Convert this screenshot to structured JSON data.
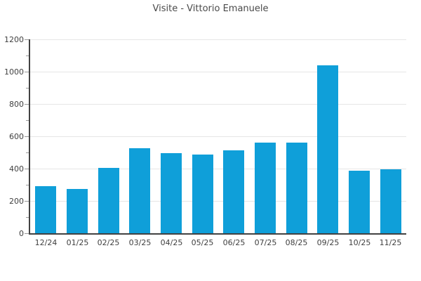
{
  "colors": {
    "bar": "#0f9fd9",
    "axis_line": "#424242",
    "gridline": "#e6e6e6",
    "tick_mark": "#999999",
    "title_text": "#4a4a4a",
    "label_text": "#404040",
    "background": "#ffffff"
  },
  "chart_data": {
    "type": "bar",
    "title": "Visite - Vittorio Emanuele",
    "categories": [
      "12/24",
      "01/25",
      "02/25",
      "03/25",
      "04/25",
      "05/25",
      "06/25",
      "07/25",
      "08/25",
      "09/25",
      "10/25",
      "11/25"
    ],
    "values": [
      290,
      273,
      404,
      528,
      494,
      486,
      512,
      563,
      561,
      1040,
      389,
      397
    ],
    "series_name": "Visite",
    "xlabel": "",
    "ylabel": "",
    "ylim": [
      0,
      1200
    ],
    "ytick_step": 200,
    "ytick_labels": [
      "0",
      "200",
      "400",
      "600",
      "800",
      "1000",
      "1200"
    ],
    "minor_tick_step": 100,
    "grid": "horizontal-major",
    "legend": "none"
  }
}
